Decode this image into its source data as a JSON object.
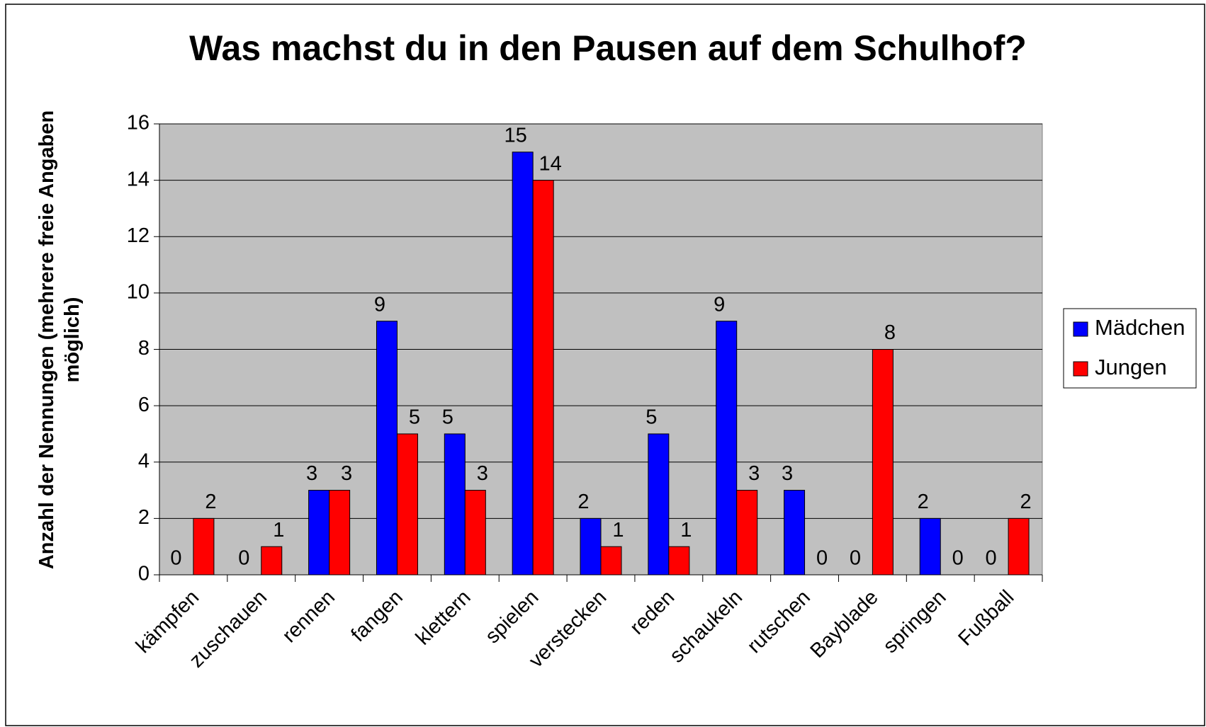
{
  "chart_data": {
    "type": "bar",
    "title": "Was machst du in den Pausen auf dem Schulhof?",
    "y_label": [
      "Anzahl der Nennungen (mehrere freie Angaben",
      "möglich)"
    ],
    "categories": [
      "kämpfen",
      "zuschauen",
      "rennen",
      "fangen",
      "klettern",
      "spielen",
      "verstecken",
      "reden",
      "schaukeln",
      "rutschen",
      "Bayblade",
      "springen",
      "Fußball"
    ],
    "series": [
      {
        "name": "Mädchen",
        "color": "#0000ff",
        "values": [
          0,
          0,
          3,
          9,
          5,
          15,
          2,
          5,
          9,
          3,
          0,
          2,
          0
        ]
      },
      {
        "name": "Jungen",
        "color": "#ff0000",
        "values": [
          2,
          1,
          3,
          5,
          3,
          14,
          1,
          1,
          3,
          0,
          8,
          0,
          2
        ]
      }
    ],
    "ylim": [
      0,
      16
    ],
    "yticks": [
      0,
      2,
      4,
      6,
      8,
      10,
      12,
      14,
      16
    ],
    "grid": true,
    "legend": "right"
  }
}
